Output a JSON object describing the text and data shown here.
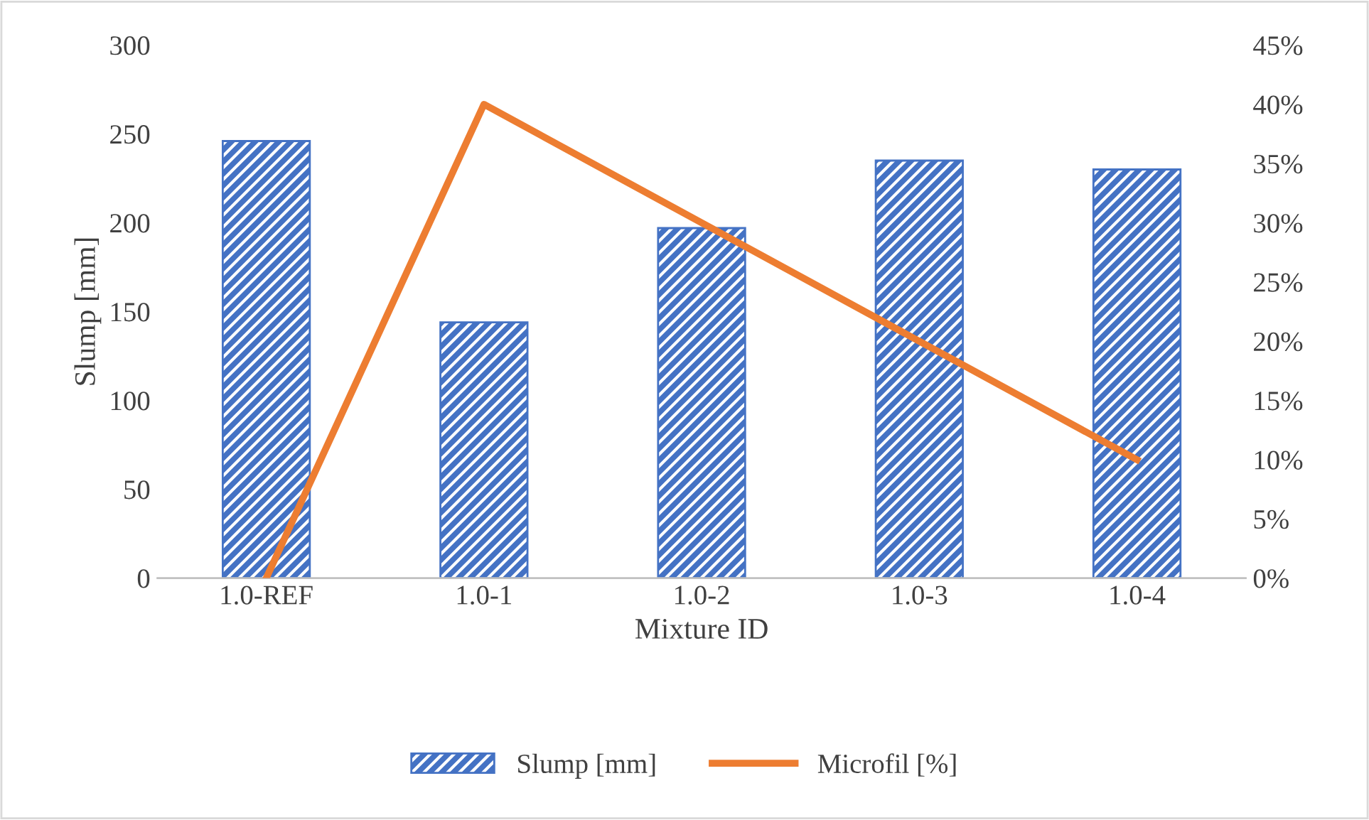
{
  "chart_data": {
    "type": "bar",
    "xlabel": "Mixture ID",
    "ylabel": "Slump [mm]",
    "categories": [
      "1.0-REF",
      "1.0-1",
      "1.0-2",
      "1.0-3",
      "1.0-4"
    ],
    "series": [
      {
        "name": "Slump [mm]",
        "color": "#4472c4",
        "values": [
          246,
          144,
          197,
          235,
          230
        ]
      },
      {
        "name": "Microfil [%]",
        "type": "line",
        "axis": "y2",
        "color": "#ed7d31",
        "values": [
          0,
          40,
          30,
          20,
          10
        ]
      }
    ],
    "ylim": [
      0,
      300
    ],
    "yticks": [
      0,
      50,
      100,
      150,
      200,
      250,
      300
    ],
    "y2lim": [
      0,
      45
    ],
    "y2ticks": [
      {
        "value": 0,
        "label": "0%"
      },
      {
        "value": 5,
        "label": "5%"
      },
      {
        "value": 10,
        "label": "10%"
      },
      {
        "value": 15,
        "label": "15%"
      },
      {
        "value": 20,
        "label": "20%"
      },
      {
        "value": 25,
        "label": "25%"
      },
      {
        "value": 30,
        "label": "30%"
      },
      {
        "value": 35,
        "label": "35%"
      },
      {
        "value": 40,
        "label": "40%"
      },
      {
        "value": 45,
        "label": "45%"
      }
    ],
    "legend": "bottom",
    "grid": false
  }
}
